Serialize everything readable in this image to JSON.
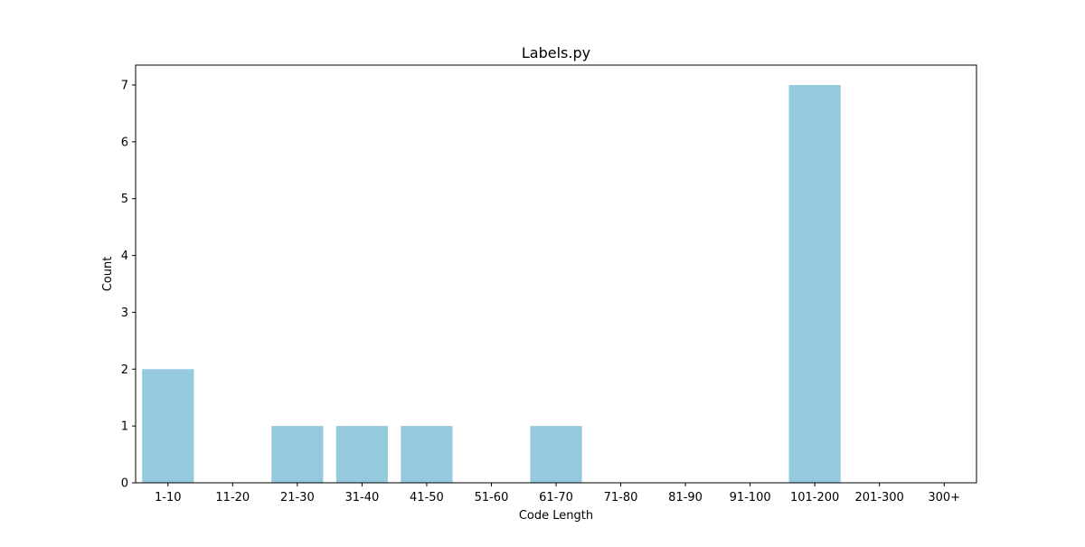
{
  "chart_data": {
    "type": "bar",
    "title": "Labels.py",
    "xlabel": "Code Length",
    "ylabel": "Count",
    "categories": [
      "1-10",
      "11-20",
      "21-30",
      "31-40",
      "41-50",
      "51-60",
      "61-70",
      "71-80",
      "81-90",
      "91-100",
      "101-200",
      "201-300",
      "300+"
    ],
    "values": [
      2,
      0,
      1,
      1,
      1,
      0,
      1,
      0,
      0,
      0,
      7,
      0,
      0
    ],
    "ylim": [
      0,
      7.35
    ],
    "yticks": [
      0,
      1,
      2,
      3,
      4,
      5,
      6,
      7
    ],
    "grid": false,
    "legend": "none",
    "bar_color": "#95c9de"
  }
}
